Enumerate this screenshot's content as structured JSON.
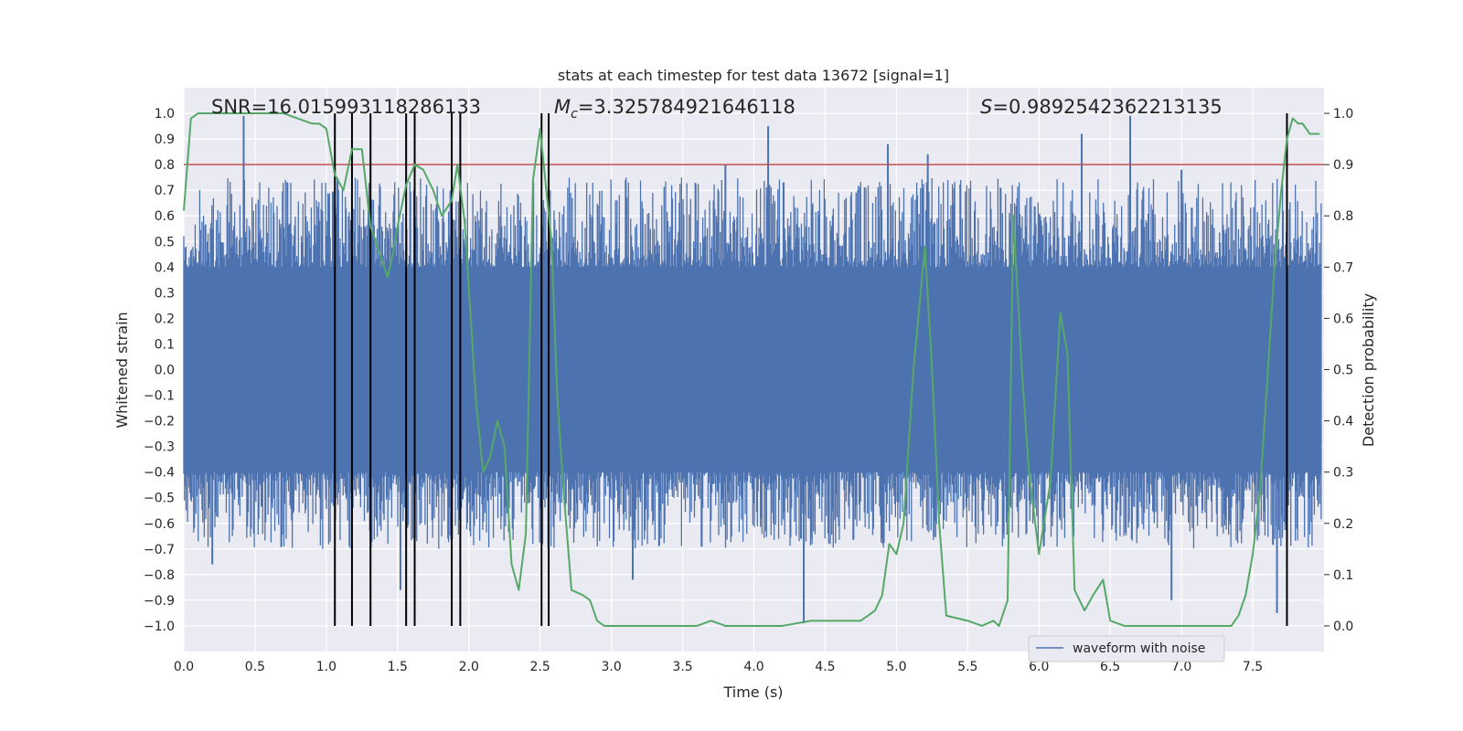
{
  "chart_data": {
    "type": "line",
    "title": "stats at each timestep for test data 13672 [signal=1]",
    "xlabel": "Time (s)",
    "ylabel": "Whitened strain",
    "y2label": "Detection probability",
    "xlim": [
      0.0,
      8.0
    ],
    "ylim": [
      -1.1,
      1.1
    ],
    "y2lim": [
      -0.05,
      1.05
    ],
    "xticks": [
      "0.0",
      "0.5",
      "1.0",
      "1.5",
      "2.0",
      "2.5",
      "3.0",
      "3.5",
      "4.0",
      "4.5",
      "5.0",
      "5.5",
      "6.0",
      "6.5",
      "7.0",
      "7.5"
    ],
    "yticks": [
      "1.0",
      "0.9",
      "0.8",
      "0.7",
      "0.6",
      "0.5",
      "0.4",
      "0.3",
      "0.2",
      "0.1",
      "0.0",
      "−0.1",
      "−0.2",
      "−0.3",
      "−0.4",
      "−0.5",
      "−0.6",
      "−0.7",
      "−0.8",
      "−0.9",
      "−1.0"
    ],
    "y2ticks": [
      "1.0",
      "0.9",
      "0.8",
      "0.7",
      "0.6",
      "0.5",
      "0.4",
      "0.3",
      "0.2",
      "0.1",
      "0.0"
    ],
    "annotations": {
      "snr": "SNR=16.015993118286133",
      "mc_symbol": "M",
      "mc_subscript": "c",
      "mc_value": "=3.325784921646118",
      "s_symbol": "S",
      "s_value": "=0.9892542362213135"
    },
    "legend": {
      "label": "waveform with noise",
      "placement": "lower-right"
    },
    "threshold": {
      "value": 0.9,
      "color": "#c44e52"
    },
    "event_markers": [
      1.06,
      1.18,
      1.31,
      1.56,
      1.62,
      1.88,
      1.94,
      2.51,
      2.56,
      7.74
    ],
    "series": [
      {
        "name": "waveform with noise",
        "axis": "left",
        "color": "#4c72b0",
        "envelope": {
          "base_amplitude": 0.4,
          "typical_max": 0.75,
          "typical_min": -0.7
        },
        "spikes": [
          {
            "x": 0.42,
            "y": 0.99
          },
          {
            "x": 4.1,
            "y": 0.95
          },
          {
            "x": 4.94,
            "y": 0.88
          },
          {
            "x": 5.22,
            "y": 0.84
          },
          {
            "x": 6.64,
            "y": 0.99
          },
          {
            "x": 6.3,
            "y": 0.92
          },
          {
            "x": 4.35,
            "y": -0.99
          },
          {
            "x": 7.67,
            "y": -0.95
          },
          {
            "x": 6.93,
            "y": -0.9
          },
          {
            "x": 1.52,
            "y": -0.86
          },
          {
            "x": 0.2,
            "y": -0.76
          },
          {
            "x": 3.15,
            "y": -0.82
          },
          {
            "x": 7.0,
            "y": 0.78
          },
          {
            "x": 3.8,
            "y": 0.8
          }
        ]
      },
      {
        "name": "detection probability",
        "axis": "right",
        "color": "#55a868",
        "x": [
          0.0,
          0.05,
          0.1,
          0.2,
          0.3,
          0.4,
          0.5,
          0.6,
          0.7,
          0.8,
          0.9,
          0.95,
          1.0,
          1.06,
          1.12,
          1.18,
          1.25,
          1.31,
          1.37,
          1.43,
          1.47,
          1.5,
          1.56,
          1.62,
          1.68,
          1.75,
          1.81,
          1.88,
          1.92,
          1.97,
          2.05,
          2.1,
          2.15,
          2.2,
          2.25,
          2.3,
          2.35,
          2.4,
          2.45,
          2.5,
          2.58,
          2.62,
          2.66,
          2.72,
          2.8,
          2.85,
          2.9,
          2.95,
          3.0,
          3.2,
          3.4,
          3.6,
          3.7,
          3.8,
          4.0,
          4.2,
          4.4,
          4.5,
          4.6,
          4.75,
          4.85,
          4.9,
          4.95,
          5.0,
          5.05,
          5.12,
          5.2,
          5.25,
          5.3,
          5.35,
          5.5,
          5.6,
          5.68,
          5.72,
          5.78,
          5.82,
          5.88,
          5.93,
          6.0,
          6.08,
          6.15,
          6.2,
          6.25,
          6.32,
          6.38,
          6.45,
          6.5,
          6.6,
          6.8,
          6.9,
          7.0,
          7.2,
          7.35,
          7.4,
          7.45,
          7.5,
          7.55,
          7.6,
          7.65,
          7.7,
          7.74,
          7.78,
          7.82,
          7.85,
          7.9,
          7.97
        ],
        "y": [
          0.81,
          0.99,
          1.0,
          1.0,
          1.0,
          1.0,
          1.0,
          1.0,
          1.0,
          0.99,
          0.98,
          0.98,
          0.97,
          0.88,
          0.85,
          0.93,
          0.93,
          0.78,
          0.73,
          0.68,
          0.73,
          0.78,
          0.86,
          0.9,
          0.89,
          0.85,
          0.8,
          0.83,
          0.9,
          0.79,
          0.44,
          0.3,
          0.33,
          0.4,
          0.35,
          0.12,
          0.07,
          0.18,
          0.87,
          0.97,
          0.75,
          0.45,
          0.28,
          0.07,
          0.06,
          0.05,
          0.01,
          0.0,
          0.0,
          0.0,
          0.0,
          0.0,
          0.01,
          0.0,
          0.0,
          0.0,
          0.01,
          0.01,
          0.01,
          0.01,
          0.03,
          0.06,
          0.16,
          0.14,
          0.2,
          0.5,
          0.74,
          0.5,
          0.2,
          0.02,
          0.01,
          0.0,
          0.01,
          0.0,
          0.05,
          0.8,
          0.5,
          0.3,
          0.14,
          0.28,
          0.61,
          0.53,
          0.07,
          0.03,
          0.06,
          0.09,
          0.01,
          0.0,
          0.0,
          0.0,
          0.0,
          0.0,
          0.0,
          0.02,
          0.06,
          0.14,
          0.26,
          0.47,
          0.69,
          0.85,
          0.95,
          0.99,
          0.98,
          0.98,
          0.96,
          0.96
        ]
      }
    ]
  }
}
